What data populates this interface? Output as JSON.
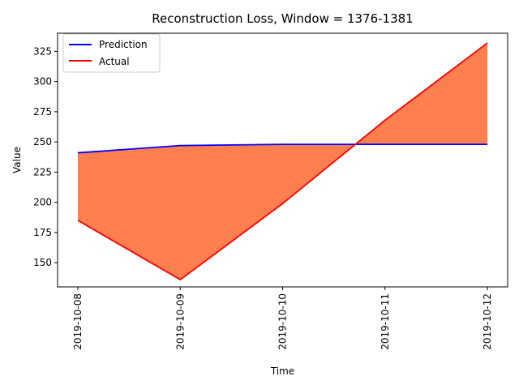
{
  "chart_data": {
    "type": "line",
    "title": "Reconstruction Loss, Window = 1376-1381",
    "xlabel": "Time",
    "ylabel": "Value",
    "categories": [
      "2019-10-08",
      "2019-10-09",
      "2019-10-10",
      "2019-10-11",
      "2019-10-12"
    ],
    "ylim": [
      130,
      340
    ],
    "yticks": [
      150,
      175,
      200,
      225,
      250,
      275,
      300,
      325
    ],
    "series": [
      {
        "name": "Prediction",
        "color": "#0000ff",
        "values": [
          241,
          247,
          248,
          248,
          248
        ]
      },
      {
        "name": "Actual",
        "color": "#ff0000",
        "values": [
          185,
          136,
          199,
          268,
          332
        ]
      }
    ],
    "fill_between": {
      "color": "#ff7f50",
      "between": [
        "Prediction",
        "Actual"
      ]
    },
    "legend": {
      "position": "top-left"
    },
    "grid": false
  }
}
